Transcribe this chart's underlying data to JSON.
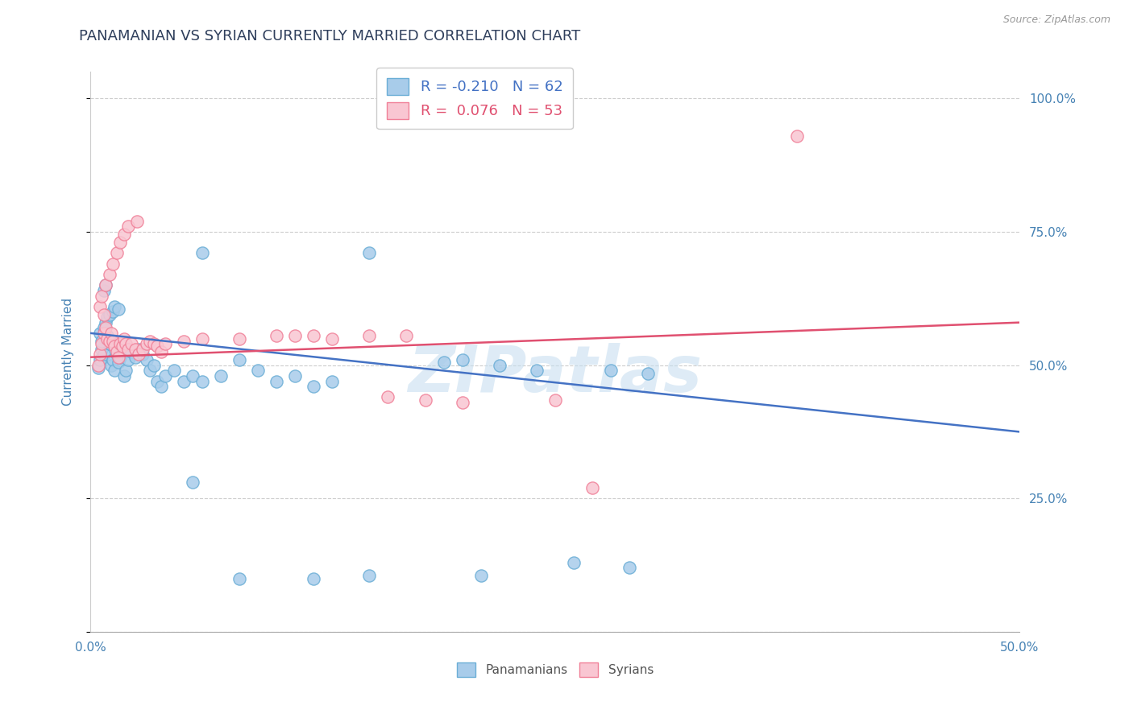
{
  "title": "PANAMANIAN VS SYRIAN CURRENTLY MARRIED CORRELATION CHART",
  "source": "Source: ZipAtlas.com",
  "ylabel": "Currently Married",
  "xlim": [
    0.0,
    0.5
  ],
  "ylim": [
    0.0,
    1.05
  ],
  "xticks": [
    0.0,
    0.1,
    0.2,
    0.3,
    0.4,
    0.5
  ],
  "xticklabels": [
    "0.0%",
    "",
    "",
    "",
    "",
    "50.0%"
  ],
  "yticks": [
    0.0,
    0.25,
    0.5,
    0.75,
    1.0
  ],
  "yticklabels": [
    "",
    "25.0%",
    "50.0%",
    "75.0%",
    "100.0%"
  ],
  "blue_fill": "#A8CCEA",
  "blue_edge": "#6BAED6",
  "pink_fill": "#F9C6D2",
  "pink_edge": "#F08098",
  "blue_line_color": "#4472C4",
  "pink_line_color": "#E05070",
  "legend_blue_R": "-0.210",
  "legend_blue_N": "62",
  "legend_pink_R": "0.076",
  "legend_pink_N": "53",
  "legend_label_blue": "Panamanians",
  "legend_label_pink": "Syrians",
  "watermark": "ZIPatlas",
  "background_color": "#ffffff",
  "grid_color": "#cccccc",
  "title_color": "#2F3F5C",
  "axis_label_color": "#4682B4",
  "blue_scatter": [
    [
      0.004,
      0.495
    ],
    [
      0.005,
      0.51
    ],
    [
      0.006,
      0.53
    ],
    [
      0.007,
      0.52
    ],
    [
      0.008,
      0.545
    ],
    [
      0.009,
      0.555
    ],
    [
      0.01,
      0.54
    ],
    [
      0.011,
      0.5
    ],
    [
      0.012,
      0.51
    ],
    [
      0.013,
      0.49
    ],
    [
      0.014,
      0.52
    ],
    [
      0.015,
      0.505
    ],
    [
      0.016,
      0.515
    ],
    [
      0.017,
      0.53
    ],
    [
      0.018,
      0.48
    ],
    [
      0.019,
      0.49
    ],
    [
      0.02,
      0.51
    ],
    [
      0.022,
      0.525
    ],
    [
      0.024,
      0.515
    ],
    [
      0.026,
      0.53
    ],
    [
      0.028,
      0.52
    ],
    [
      0.03,
      0.51
    ],
    [
      0.032,
      0.49
    ],
    [
      0.034,
      0.5
    ],
    [
      0.036,
      0.47
    ],
    [
      0.038,
      0.46
    ],
    [
      0.04,
      0.48
    ],
    [
      0.045,
      0.49
    ],
    [
      0.05,
      0.47
    ],
    [
      0.055,
      0.48
    ],
    [
      0.06,
      0.47
    ],
    [
      0.07,
      0.48
    ],
    [
      0.08,
      0.51
    ],
    [
      0.09,
      0.49
    ],
    [
      0.1,
      0.47
    ],
    [
      0.11,
      0.48
    ],
    [
      0.12,
      0.46
    ],
    [
      0.13,
      0.47
    ],
    [
      0.005,
      0.56
    ],
    [
      0.006,
      0.545
    ],
    [
      0.007,
      0.57
    ],
    [
      0.008,
      0.58
    ],
    [
      0.009,
      0.59
    ],
    [
      0.01,
      0.595
    ],
    [
      0.012,
      0.6
    ],
    [
      0.013,
      0.61
    ],
    [
      0.015,
      0.605
    ],
    [
      0.007,
      0.64
    ],
    [
      0.008,
      0.65
    ],
    [
      0.06,
      0.71
    ],
    [
      0.15,
      0.71
    ],
    [
      0.19,
      0.505
    ],
    [
      0.2,
      0.51
    ],
    [
      0.22,
      0.5
    ],
    [
      0.24,
      0.49
    ],
    [
      0.28,
      0.49
    ],
    [
      0.3,
      0.485
    ],
    [
      0.055,
      0.28
    ],
    [
      0.08,
      0.1
    ],
    [
      0.12,
      0.1
    ],
    [
      0.15,
      0.105
    ],
    [
      0.21,
      0.105
    ],
    [
      0.26,
      0.13
    ],
    [
      0.29,
      0.12
    ]
  ],
  "pink_scatter": [
    [
      0.004,
      0.5
    ],
    [
      0.005,
      0.52
    ],
    [
      0.006,
      0.54
    ],
    [
      0.007,
      0.56
    ],
    [
      0.008,
      0.57
    ],
    [
      0.009,
      0.55
    ],
    [
      0.01,
      0.545
    ],
    [
      0.011,
      0.56
    ],
    [
      0.012,
      0.545
    ],
    [
      0.013,
      0.535
    ],
    [
      0.014,
      0.525
    ],
    [
      0.015,
      0.515
    ],
    [
      0.016,
      0.54
    ],
    [
      0.017,
      0.535
    ],
    [
      0.018,
      0.55
    ],
    [
      0.019,
      0.54
    ],
    [
      0.02,
      0.53
    ],
    [
      0.022,
      0.54
    ],
    [
      0.024,
      0.53
    ],
    [
      0.026,
      0.52
    ],
    [
      0.028,
      0.53
    ],
    [
      0.03,
      0.54
    ],
    [
      0.032,
      0.545
    ],
    [
      0.034,
      0.54
    ],
    [
      0.036,
      0.535
    ],
    [
      0.038,
      0.525
    ],
    [
      0.005,
      0.61
    ],
    [
      0.006,
      0.63
    ],
    [
      0.008,
      0.65
    ],
    [
      0.01,
      0.67
    ],
    [
      0.012,
      0.69
    ],
    [
      0.014,
      0.71
    ],
    [
      0.016,
      0.73
    ],
    [
      0.018,
      0.745
    ],
    [
      0.02,
      0.76
    ],
    [
      0.025,
      0.77
    ],
    [
      0.007,
      0.595
    ],
    [
      0.04,
      0.54
    ],
    [
      0.05,
      0.545
    ],
    [
      0.06,
      0.55
    ],
    [
      0.08,
      0.55
    ],
    [
      0.1,
      0.555
    ],
    [
      0.11,
      0.555
    ],
    [
      0.12,
      0.555
    ],
    [
      0.13,
      0.55
    ],
    [
      0.15,
      0.555
    ],
    [
      0.17,
      0.555
    ],
    [
      0.16,
      0.44
    ],
    [
      0.18,
      0.435
    ],
    [
      0.2,
      0.43
    ],
    [
      0.25,
      0.435
    ],
    [
      0.38,
      0.93
    ],
    [
      0.27,
      0.27
    ]
  ],
  "blue_line_x": [
    0.0,
    0.5
  ],
  "blue_line_y": [
    0.56,
    0.375
  ],
  "pink_line_x": [
    0.0,
    0.5
  ],
  "pink_line_y": [
    0.515,
    0.58
  ]
}
